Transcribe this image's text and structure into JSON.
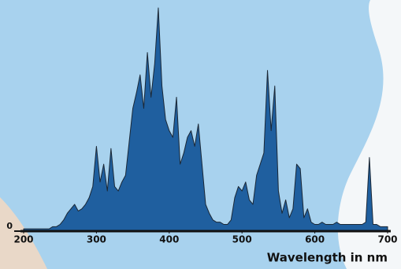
{
  "chart_data": {
    "type": "area",
    "x_label": "Wavelength in nm",
    "x": [
      200,
      205,
      210,
      215,
      220,
      225,
      230,
      235,
      240,
      245,
      250,
      255,
      260,
      265,
      270,
      275,
      280,
      285,
      290,
      295,
      300,
      305,
      310,
      315,
      320,
      325,
      330,
      335,
      340,
      345,
      350,
      355,
      360,
      365,
      370,
      375,
      380,
      385,
      390,
      395,
      400,
      405,
      410,
      415,
      420,
      425,
      430,
      435,
      440,
      445,
      450,
      455,
      460,
      465,
      470,
      475,
      480,
      485,
      490,
      495,
      500,
      505,
      510,
      515,
      520,
      525,
      530,
      535,
      540,
      545,
      550,
      555,
      560,
      565,
      570,
      575,
      580,
      585,
      590,
      595,
      600,
      605,
      610,
      615,
      620,
      625,
      630,
      635,
      640,
      645,
      650,
      655,
      660,
      665,
      670,
      675,
      680,
      685,
      690,
      695,
      700
    ],
    "values": [
      1,
      1,
      1,
      1,
      1,
      1,
      1,
      1,
      2,
      2,
      3,
      5,
      8,
      10,
      12,
      9,
      10,
      12,
      15,
      20,
      38,
      22,
      30,
      18,
      37,
      20,
      18,
      22,
      25,
      40,
      55,
      62,
      70,
      55,
      80,
      60,
      75,
      100,
      65,
      50,
      45,
      42,
      60,
      30,
      35,
      42,
      45,
      38,
      48,
      30,
      12,
      8,
      5,
      4,
      4,
      3,
      3,
      5,
      15,
      20,
      18,
      22,
      14,
      12,
      25,
      30,
      35,
      72,
      45,
      65,
      18,
      8,
      14,
      6,
      10,
      30,
      28,
      6,
      10,
      4,
      3,
      3,
      4,
      3,
      3,
      3,
      4,
      3,
      3,
      3,
      3,
      3,
      3,
      3,
      4,
      33,
      3,
      3,
      2,
      2,
      2
    ],
    "color": "#1f5f9f",
    "line_color": "#1b2836",
    "xlim": [
      200,
      700
    ],
    "ylim": [
      0,
      100
    ],
    "xticks": [
      200,
      300,
      400,
      500,
      600,
      700
    ],
    "yticks": [
      0
    ]
  }
}
